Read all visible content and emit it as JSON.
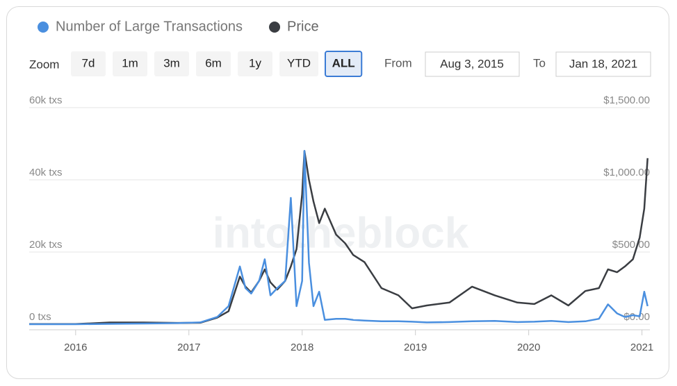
{
  "chart_data": {
    "type": "line",
    "series": [
      {
        "name": "Number of Large Transactions",
        "color": "#4a8fdf",
        "values": [
          0,
          0,
          0,
          100,
          200,
          300,
          500,
          2000,
          5000,
          16000,
          10000,
          8500,
          12000,
          18000,
          8000,
          10000,
          12000,
          35000,
          5000,
          12000,
          48000,
          17000,
          5000,
          9000,
          1200,
          1500,
          1500,
          1200,
          1000,
          800,
          800,
          700,
          500,
          600,
          800,
          900,
          600,
          700,
          900,
          600,
          800,
          1500,
          5500,
          3000,
          2000,
          2500,
          2200,
          9000,
          5000
        ]
      },
      {
        "name": "Price",
        "color": "#3a3d42",
        "axis": "y2",
        "values": [
          1,
          1,
          1,
          12,
          12,
          9,
          10,
          45,
          90,
          330,
          260,
          220,
          300,
          380,
          290,
          240,
          300,
          400,
          520,
          900,
          1200,
          1000,
          850,
          700,
          800,
          620,
          560,
          480,
          430,
          250,
          200,
          110,
          130,
          150,
          260,
          200,
          150,
          140,
          200,
          130,
          230,
          250,
          380,
          360,
          400,
          450,
          600,
          800,
          1150
        ]
      }
    ],
    "x": [
      2015.59,
      2015.8,
      2016.0,
      2016.3,
      2016.6,
      2016.9,
      2017.1,
      2017.25,
      2017.35,
      2017.45,
      2017.5,
      2017.55,
      2017.62,
      2017.67,
      2017.72,
      2017.78,
      2017.85,
      2017.9,
      2017.95,
      2018.0,
      2018.02,
      2018.06,
      2018.1,
      2018.15,
      2018.2,
      2018.3,
      2018.38,
      2018.45,
      2018.55,
      2018.7,
      2018.85,
      2018.97,
      2019.1,
      2019.3,
      2019.5,
      2019.7,
      2019.9,
      2020.05,
      2020.2,
      2020.35,
      2020.5,
      2020.62,
      2020.7,
      2020.78,
      2020.85,
      2020.92,
      2020.98,
      2021.02,
      2021.05
    ],
    "xlim": [
      2015.59,
      2021.07
    ],
    "xticks": [
      2016,
      2017,
      2018,
      2019,
      2020,
      2021
    ],
    "ylim": [
      0,
      60000
    ],
    "yticks": [
      {
        "value": 0,
        "label": "0 txs"
      },
      {
        "value": 20000,
        "label": "20k txs"
      },
      {
        "value": 40000,
        "label": "40k txs"
      },
      {
        "value": 60000,
        "label": "60k txs"
      }
    ],
    "y2lim": [
      0,
      1500
    ],
    "y2ticks": [
      {
        "value": 0,
        "label": "$0.00"
      },
      {
        "value": 500,
        "label": "$500.00"
      },
      {
        "value": 1000,
        "label": "$1,000.00"
      },
      {
        "value": 1500,
        "label": "$1,500.00"
      }
    ],
    "grid": true,
    "legend": "top",
    "watermark": "intotheblock"
  },
  "zoom": {
    "label": "Zoom",
    "options": [
      {
        "label": "7d"
      },
      {
        "label": "1m"
      },
      {
        "label": "3m"
      },
      {
        "label": "6m"
      },
      {
        "label": "1y"
      },
      {
        "label": "YTD"
      },
      {
        "label": "ALL",
        "active": true
      }
    ]
  },
  "range": {
    "from_label": "From",
    "from": "Aug 3, 2015",
    "to_label": "To",
    "to": "Jan 18, 2021"
  }
}
